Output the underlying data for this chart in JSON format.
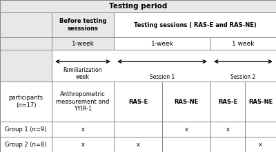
{
  "title": "Testing period",
  "bg_color": "#ffffff",
  "before_testing_label": "Before testing\nsesssions",
  "before_testing_week": "1-week",
  "testing_sessions_label": "Testing sessions ( RAS-E and RAS-NE)",
  "session1_week": "1-week",
  "session2_week": "1 week",
  "familiarization_label": "Familiarization\nweek",
  "session1_label": "Session 1",
  "session2_label": "Session 2",
  "participants_label": "participants\n(n=17)",
  "anthropometric_label": "Anthropometric\nmeasurement and\nYYIR-1",
  "col_labels": [
    "RAS-E",
    "RAS-NE",
    "RAS-E",
    "RAS-NE"
  ],
  "group1_label": "Group 1 (n=9)",
  "group1_marks": [
    true,
    false,
    true,
    true,
    false
  ],
  "group2_label": "Group 2 (n=8)",
  "group2_marks": [
    true,
    true,
    false,
    false,
    true
  ],
  "gray_light": "#e8e8e8",
  "gray_dark": "#c8c8c8",
  "white": "#ffffff",
  "border": "#888888"
}
